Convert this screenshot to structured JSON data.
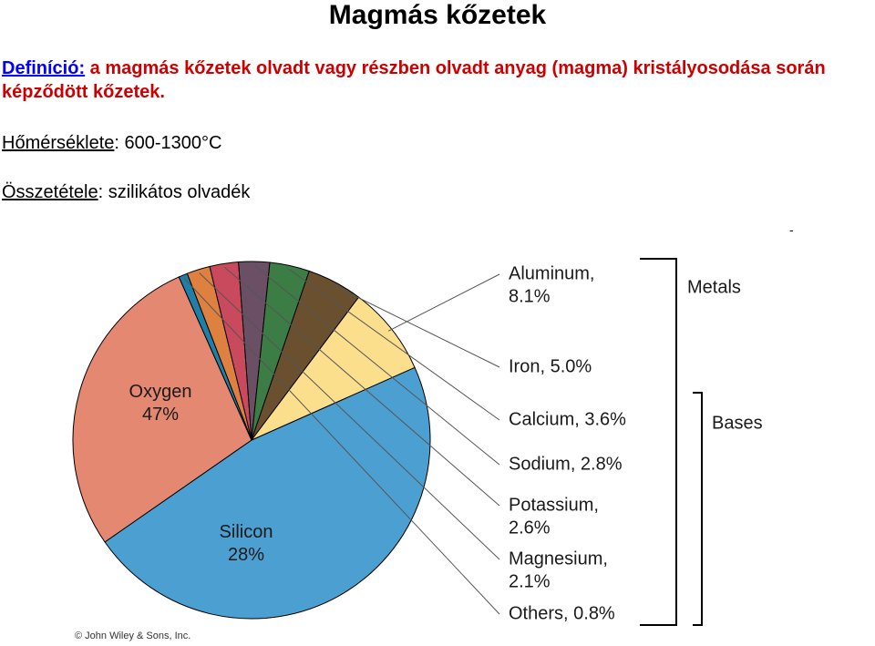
{
  "page": {
    "title": "Magmás kőzetek",
    "definition_label": "Definíció:",
    "definition_text": " a magmás kőzetek olvadt vagy részben olvadt anyag (magma) kristályosodása során képződött kőzetek.",
    "temperature_label": "Hőmérséklete",
    "temperature_value": ": 600-1300°C",
    "composition_label": "Összetétele",
    "composition_value": ": szilikátos olvadék",
    "copyright": "© John Wiley & Sons, Inc."
  },
  "chart_data": {
    "type": "pie",
    "title": "",
    "slices": [
      {
        "label": "Oxygen",
        "value": 47,
        "display": "47%",
        "color": "#4b9fd1"
      },
      {
        "label": "Silicon",
        "value": 28,
        "display": "28%",
        "color": "#e58872"
      },
      {
        "label": "Others",
        "value": 0.8,
        "display": "Others, 0.8%",
        "color": "#1f7fa8"
      },
      {
        "label": "Magnesium",
        "value": 2.1,
        "display": "Magnesium,\n2.1%",
        "color": "#dd8040"
      },
      {
        "label": "Potassium",
        "value": 2.6,
        "display": "Potassium,\n2.6%",
        "color": "#c94a5c"
      },
      {
        "label": "Sodium",
        "value": 2.8,
        "display": "Sodium, 2.8%",
        "color": "#6b5065"
      },
      {
        "label": "Calcium",
        "value": 3.6,
        "display": "Calcium, 3.6%",
        "color": "#3b7d45"
      },
      {
        "label": "Iron",
        "value": 5.0,
        "display": "Iron, 5.0%",
        "color": "#6b5030"
      },
      {
        "label": "Aluminum",
        "value": 8.1,
        "display": "Aluminum,\n8.1%",
        "color": "#fcdf8d"
      }
    ],
    "groups": [
      {
        "label": "Metals",
        "members": [
          "Aluminum",
          "Iron",
          "Calcium",
          "Sodium",
          "Potassium",
          "Magnesium",
          "Others"
        ]
      },
      {
        "label": "Bases",
        "members": [
          "Calcium",
          "Sodium",
          "Potassium",
          "Magnesium"
        ]
      }
    ]
  }
}
